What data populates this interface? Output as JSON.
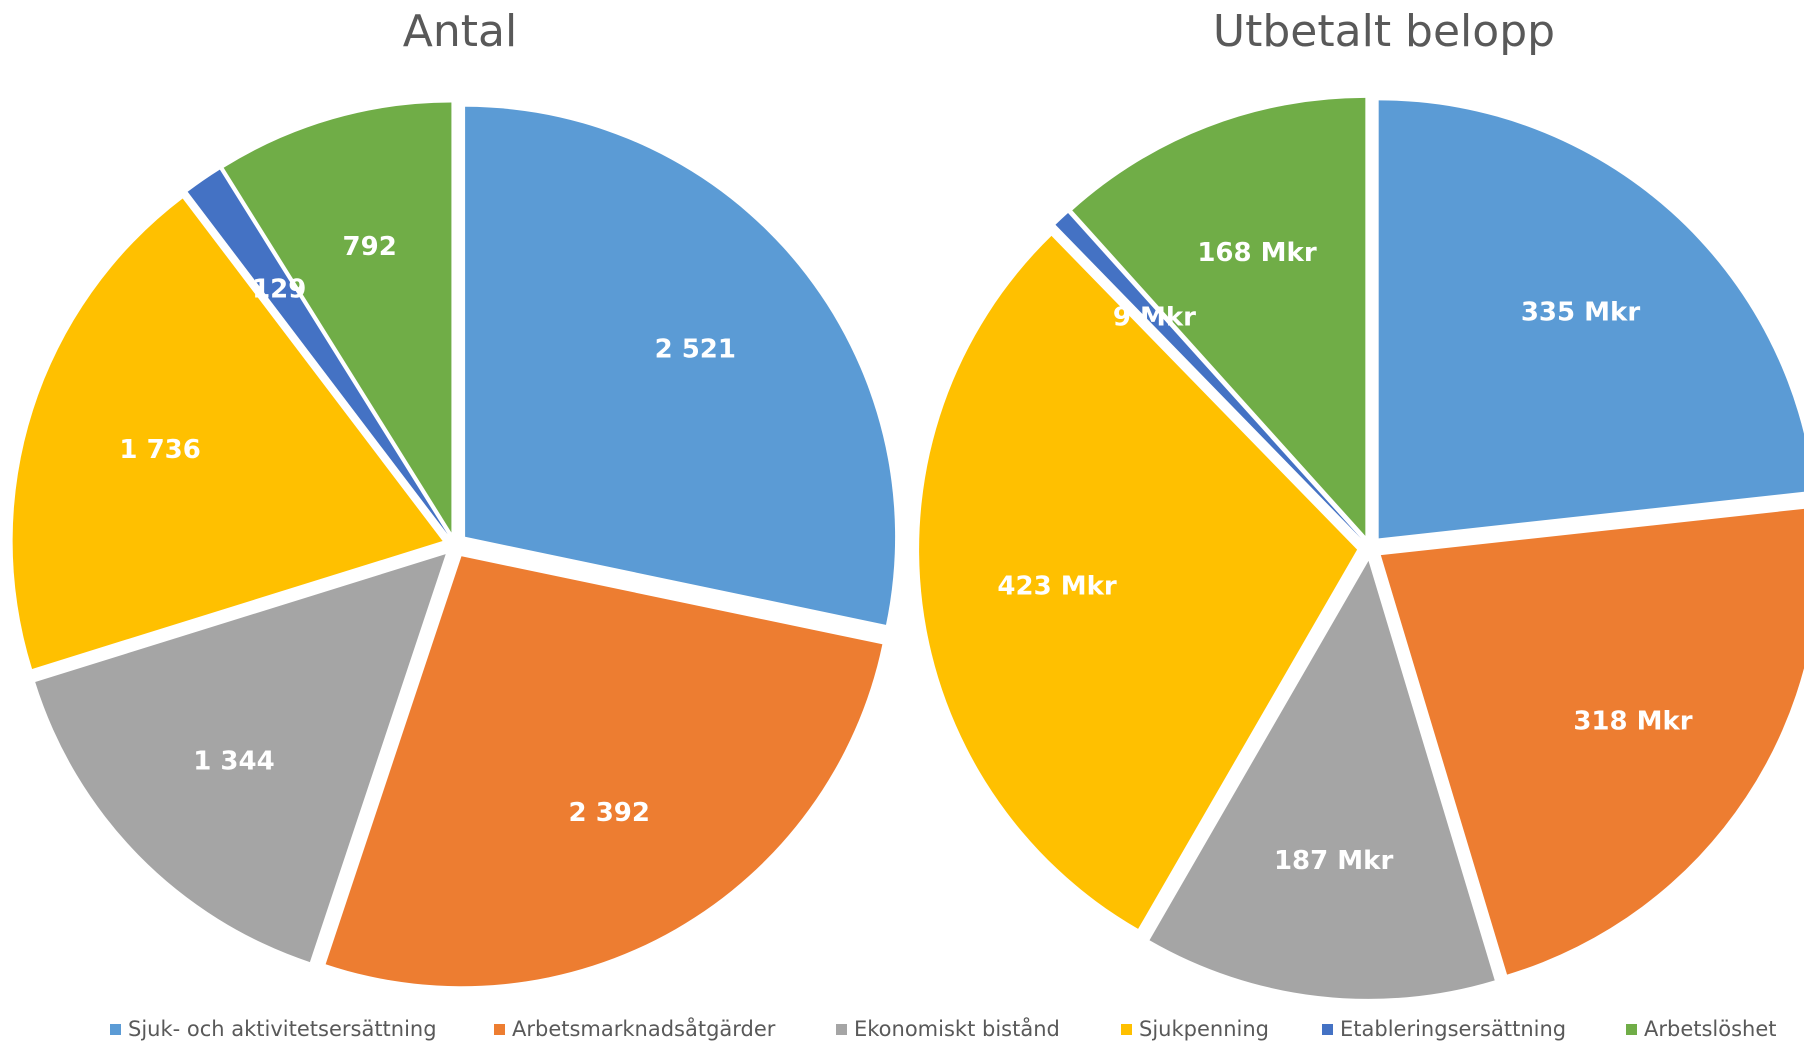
{
  "chart_data": [
    {
      "type": "pie",
      "title": "Antal",
      "categories": [
        "Sjuk- och aktivitetsersättning",
        "Arbetsmarknadsåtgärder",
        "Ekonomiskt bistånd",
        "Sjukpenning",
        "Etableringsersättning",
        "Arbetslöshet"
      ],
      "values": [
        2521,
        2392,
        1344,
        1736,
        129,
        792
      ],
      "value_labels": [
        "2 521",
        "2 392",
        "1 344",
        "1 736",
        "129",
        "792"
      ],
      "colors": [
        "#5b9bd5",
        "#ed7d31",
        "#a5a5a5",
        "#ffc000",
        "#4472c4",
        "#70ad47"
      ]
    },
    {
      "type": "pie",
      "title": "Utbetalt belopp",
      "categories": [
        "Sjuk- och aktivitetsersättning",
        "Arbetsmarknadsåtgärder",
        "Ekonomiskt bistånd",
        "Sjukpenning",
        "Etableringsersättning",
        "Arbetslöshet"
      ],
      "values": [
        335,
        318,
        187,
        423,
        9,
        168
      ],
      "value_labels": [
        "335 Mkr",
        "318 Mkr",
        "187 Mkr",
        "423 Mkr",
        "9 Mkr",
        "168 Mkr"
      ],
      "colors": [
        "#5b9bd5",
        "#ed7d31",
        "#a5a5a5",
        "#ffc000",
        "#4472c4",
        "#70ad47"
      ]
    }
  ]
}
